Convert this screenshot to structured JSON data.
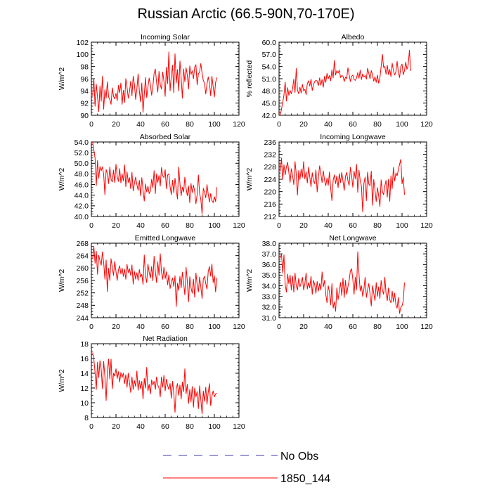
{
  "title": "Russian Arctic (66.5-90N,70-170E)",
  "legend": {
    "entries": [
      {
        "label": "No Obs",
        "color": "#3a3ab0",
        "style": "dashed"
      },
      {
        "label": "1850_144",
        "color": "#ff0000",
        "style": "solid"
      }
    ]
  },
  "chart_data": [
    {
      "type": "line",
      "title": "Incoming Solar",
      "ylabel": "W/m^2",
      "xlim": [
        0,
        120
      ],
      "xticks": [
        0,
        20,
        40,
        60,
        80,
        100,
        120
      ],
      "ylim": [
        90,
        102
      ],
      "yticks": [
        90,
        92,
        94,
        96,
        98,
        100,
        102
      ],
      "ytick_labels": [
        "90",
        "92",
        "94",
        "96",
        "98",
        "100",
        "102"
      ],
      "series": [
        {
          "name": "1850_144",
          "color": "#ff0000",
          "values": [
            93.2,
            96.0,
            91.5,
            95.1,
            93.0,
            90.6,
            94.8,
            92.3,
            96.4,
            91.0,
            94.2,
            92.8,
            95.5,
            93.0,
            92.6,
            91.8,
            94.5,
            93.1,
            92.7,
            93.6,
            92.4,
            94.9,
            93.7,
            95.3,
            91.8,
            94.1,
            92.1,
            96.0,
            94.6,
            92.8,
            93.9,
            95.6,
            93.2,
            96.4,
            95.1,
            92.6,
            94.3,
            96.8,
            94.0,
            92.2,
            95.3,
            90.5,
            93.4,
            96.2,
            92.9,
            94.7,
            96.1,
            95.0,
            93.3,
            94.7,
            96.9,
            97.6,
            95.4,
            93.8,
            97.2,
            95.0,
            94.3,
            97.1,
            95.6,
            93.1,
            97.9,
            95.2,
            100.4,
            94.0,
            96.5,
            98.2,
            93.7,
            100.1,
            95.3,
            97.5,
            94.0,
            98.9,
            96.1,
            92.8,
            97.6,
            95.5,
            97.8,
            96.6,
            94.3,
            98.1,
            96.7,
            97.3,
            96.0,
            97.9,
            98.3,
            95.0,
            96.8,
            97.1,
            98.5,
            96.9,
            95.7,
            95.3,
            93.5,
            95.1,
            96.3,
            95.2,
            93.2,
            96.4,
            94.7,
            93.0,
            95.4,
            96.2
          ]
        }
      ]
    },
    {
      "type": "line",
      "title": "Albedo",
      "ylabel": "% reflected",
      "xlim": [
        0,
        120
      ],
      "xticks": [
        0,
        20,
        40,
        60,
        80,
        100,
        120
      ],
      "ylim": [
        42,
        60
      ],
      "yticks": [
        42,
        45,
        48,
        51,
        54,
        57,
        60
      ],
      "ytick_labels": [
        "42.0",
        "45.0",
        "48.0",
        "51.0",
        "54.0",
        "57.0",
        "60.0"
      ],
      "series": [
        {
          "name": "1850_144",
          "color": "#ff0000",
          "values": [
            42.0,
            43.5,
            45.2,
            47.0,
            50.2,
            45.5,
            48.8,
            46.9,
            48.1,
            47.3,
            48.5,
            50.9,
            47.6,
            53.5,
            48.2,
            47.3,
            48.9,
            47.5,
            49.6,
            48.0,
            48.4,
            47.1,
            49.8,
            50.5,
            49.2,
            50.9,
            48.1,
            49.5,
            50.3,
            50.6,
            50.4,
            49.3,
            51.2,
            49.4,
            50.8,
            48.9,
            51.6,
            50.1,
            52.3,
            51.0,
            51.8,
            50.5,
            53.2,
            51.2,
            55.5,
            51.9,
            53.0,
            52.4,
            53.1,
            51.3,
            51.8,
            51.6,
            50.3,
            51.4,
            51.0,
            53.7,
            52.0,
            50.3,
            51.6,
            51.9,
            50.8,
            50.6,
            51.2,
            52.5,
            51.1,
            53.1,
            50.8,
            52.2,
            51.4,
            51.8,
            50.9,
            53.6,
            52.3,
            51.0,
            53.0,
            52.0,
            50.4,
            51.5,
            50.1,
            51.9,
            49.9,
            51.2,
            54.0,
            57.0,
            53.8,
            54.0,
            52.1,
            54.3,
            52.0,
            53.3,
            51.5,
            54.8,
            53.0,
            51.9,
            52.7,
            55.3,
            52.6,
            51.3,
            54.0,
            54.6,
            52.0,
            53.0,
            55.1,
            53.3,
            54.4,
            58.0,
            52.9
          ]
        }
      ]
    },
    {
      "type": "line",
      "title": "Absorbed Solar",
      "ylabel": "W/m^2",
      "xlim": [
        0,
        120
      ],
      "xticks": [
        0,
        20,
        40,
        60,
        80,
        100,
        120
      ],
      "ylim": [
        40,
        54
      ],
      "yticks": [
        40,
        42,
        44,
        46,
        48,
        50,
        52,
        54
      ],
      "ytick_labels": [
        "40.0",
        "42.0",
        "44.0",
        "46.0",
        "48.0",
        "50.0",
        "52.0",
        "54.0"
      ],
      "series": [
        {
          "name": "1850_144",
          "color": "#ff0000",
          "values": [
            54.0,
            52.5,
            51.0,
            45.8,
            50.5,
            47.2,
            49.4,
            48.6,
            49.3,
            47.9,
            44.1,
            48.8,
            48.1,
            46.2,
            49.3,
            47.0,
            46.5,
            48.7,
            46.4,
            49.8,
            47.5,
            46.6,
            49.0,
            46.3,
            48.0,
            46.7,
            49.7,
            45.6,
            48.4,
            46.4,
            47.3,
            45.2,
            48.3,
            44.8,
            46.2,
            47.4,
            46.0,
            44.9,
            46.8,
            43.9,
            47.3,
            45.0,
            42.9,
            46.1,
            44.6,
            45.7,
            44.3,
            44.8,
            47.0,
            45.4,
            48.6,
            44.3,
            48.0,
            46.4,
            47.7,
            45.7,
            49.2,
            47.6,
            47.3,
            48.8,
            45.2,
            47.8,
            48.0,
            45.6,
            44.1,
            46.8,
            44.5,
            47.2,
            45.1,
            43.3,
            49.3,
            46.2,
            43.9,
            45.5,
            44.6,
            47.4,
            45.3,
            43.9,
            45.7,
            42.6,
            46.2,
            44.5,
            45.9,
            44.7,
            42.4,
            44.1,
            47.8,
            44.3,
            43.2,
            40.5,
            45.3,
            44.6,
            43.5,
            46.0,
            44.2,
            42.7,
            44.3,
            43.0,
            42.6,
            43.7,
            42.8,
            45.5
          ]
        }
      ]
    },
    {
      "type": "line",
      "title": "Incoming Longwave",
      "ylabel": "W/m^2",
      "xlim": [
        0,
        120
      ],
      "xticks": [
        0,
        20,
        40,
        60,
        80,
        100,
        120
      ],
      "ylim": [
        212,
        236
      ],
      "yticks": [
        212,
        216,
        220,
        224,
        228,
        232,
        236
      ],
      "ytick_labels": [
        "212",
        "216",
        "220",
        "224",
        "228",
        "232",
        "236"
      ],
      "series": [
        {
          "name": "1850_144",
          "color": "#ff0000",
          "values": [
            226.5,
            230.8,
            224.0,
            228.6,
            225.4,
            227.9,
            229.5,
            226.1,
            223.0,
            227.4,
            225.2,
            222.3,
            229.7,
            225.6,
            218.9,
            226.8,
            223.9,
            227.3,
            224.6,
            229.7,
            224.1,
            226.4,
            222.8,
            227.9,
            224.7,
            221.6,
            226.1,
            223.4,
            222.6,
            227.0,
            219.9,
            224.5,
            228.3,
            225.8,
            222.9,
            226.7,
            223.7,
            221.9,
            224.4,
            222.0,
            226.3,
            221.0,
            217.1,
            223.7,
            225.4,
            222.6,
            225.1,
            221.3,
            225.8,
            222.9,
            226.2,
            223.4,
            220.4,
            224.9,
            226.2,
            223.5,
            222.0,
            227.8,
            225.2,
            221.4,
            226.6,
            224.1,
            228.8,
            219.8,
            226.9,
            223.5,
            221.8,
            213.5,
            222.7,
            224.7,
            217.1,
            226.3,
            222.4,
            221.9,
            226.6,
            215.6,
            223.9,
            220.5,
            216.8,
            221.3,
            218.7,
            215.2,
            223.8,
            220.1,
            219.0,
            221.8,
            223.6,
            218.2,
            224.0,
            216.9,
            225.1,
            221.0,
            227.8,
            223.4,
            226.0,
            225.1,
            227.0,
            228.8,
            230.4,
            222.5,
            224.7,
            219.0
          ]
        }
      ]
    },
    {
      "type": "line",
      "title": "Emitted Longwave",
      "ylabel": "W/m^2",
      "xlim": [
        0,
        120
      ],
      "xticks": [
        0,
        20,
        40,
        60,
        80,
        100,
        120
      ],
      "ylim": [
        244,
        268
      ],
      "yticks": [
        244,
        248,
        252,
        256,
        260,
        264,
        268
      ],
      "ytick_labels": [
        "244",
        "248",
        "252",
        "256",
        "260",
        "264",
        "268"
      ],
      "series": [
        {
          "name": "1850_144",
          "color": "#ff0000",
          "values": [
            263.0,
            267.0,
            261.5,
            265.4,
            258.0,
            264.1,
            262.3,
            260.9,
            265.2,
            261.8,
            256.4,
            262.6,
            252.4,
            259.9,
            256.0,
            263.0,
            260.2,
            257.6,
            262.1,
            258.9,
            256.0,
            259.4,
            260.7,
            258.1,
            260.0,
            257.3,
            259.6,
            256.4,
            261.2,
            258.5,
            259.8,
            257.6,
            261.0,
            254.8,
            258.9,
            256.4,
            258.5,
            256.0,
            259.5,
            257.1,
            258.0,
            254.7,
            264.2,
            257.4,
            255.3,
            261.3,
            258.6,
            256.8,
            260.5,
            255.9,
            263.8,
            259.0,
            255.3,
            262.0,
            257.6,
            264.6,
            258.7,
            256.4,
            260.3,
            256.6,
            258.8,
            254.6,
            257.8,
            253.4,
            255.5,
            256.8,
            254.1,
            257.5,
            247.6,
            255.1,
            252.8,
            257.3,
            253.6,
            258.7,
            255.2,
            251.3,
            260.2,
            255.8,
            249.1,
            257.2,
            253.7,
            251.9,
            256.4,
            250.6,
            258.4,
            254.6,
            252.3,
            257.1,
            253.9,
            250.2,
            256.4,
            257.3,
            255.0,
            253.2,
            258.9,
            260.5,
            257.4,
            261.3,
            255.3,
            257.5,
            252.3,
            256.8
          ]
        }
      ]
    },
    {
      "type": "line",
      "title": "Net Longwave",
      "ylabel": "W/m^2",
      "xlim": [
        0,
        120
      ],
      "xticks": [
        0,
        20,
        40,
        60,
        80,
        100,
        120
      ],
      "ylim": [
        31,
        38
      ],
      "yticks": [
        31,
        32,
        33,
        34,
        35,
        36,
        37,
        38
      ],
      "ytick_labels": [
        "31.0",
        "32.0",
        "33.0",
        "34.0",
        "35.0",
        "36.0",
        "37.0",
        "38.0"
      ],
      "series": [
        {
          "name": "1850_144",
          "color": "#ff0000",
          "values": [
            36.6,
            37.0,
            35.2,
            36.9,
            34.1,
            33.4,
            35.1,
            34.2,
            35.0,
            33.6,
            34.9,
            33.4,
            35.2,
            34.0,
            33.6,
            34.7,
            33.9,
            34.3,
            34.8,
            33.6,
            34.2,
            35.2,
            33.7,
            34.3,
            33.8,
            34.9,
            33.2,
            34.5,
            34.1,
            33.3,
            34.4,
            33.5,
            34.2,
            33.6,
            35.3,
            33.9,
            34.5,
            33.2,
            32.4,
            34.0,
            33.4,
            32.2,
            34.2,
            31.9,
            32.5,
            31.6,
            33.8,
            32.7,
            33.5,
            34.3,
            33.1,
            34.7,
            32.9,
            34.5,
            33.2,
            33.9,
            34.5,
            35.4,
            35.6,
            34.6,
            33.2,
            34.8,
            33.6,
            37.2,
            35.1,
            33.5,
            34.0,
            33.0,
            33.7,
            34.8,
            32.9,
            33.6,
            34.2,
            33.2,
            32.1,
            34.0,
            33.3,
            32.6,
            34.3,
            33.0,
            33.9,
            32.8,
            34.5,
            33.6,
            33.2,
            34.8,
            33.3,
            32.6,
            33.8,
            32.7,
            32.4,
            33.5,
            32.5,
            33.3,
            32.2,
            31.9,
            32.9,
            31.4,
            32.0,
            32.1,
            32.6,
            34.3
          ]
        }
      ]
    },
    {
      "type": "line",
      "title": "Net Radiation",
      "ylabel": "W/m^2",
      "xlim": [
        0,
        120
      ],
      "xticks": [
        0,
        20,
        40,
        60,
        80,
        100,
        120
      ],
      "ylim": [
        8,
        18
      ],
      "yticks": [
        8,
        10,
        12,
        14,
        16,
        18
      ],
      "ytick_labels": [
        "8",
        "10",
        "12",
        "14",
        "16",
        "18"
      ],
      "series": [
        {
          "name": "1850_144",
          "color": "#ff0000",
          "values": [
            16.8,
            15.9,
            14.1,
            11.8,
            15.5,
            13.4,
            15.7,
            14.5,
            11.9,
            15.6,
            13.5,
            10.3,
            14.2,
            15.9,
            13.2,
            15.9,
            11.9,
            14.0,
            13.6,
            14.6,
            13.3,
            14.2,
            12.8,
            14.1,
            13.4,
            14.0,
            12.6,
            13.8,
            12.1,
            14.0,
            12.7,
            11.4,
            13.5,
            11.8,
            13.0,
            12.2,
            14.3,
            11.7,
            13.0,
            11.9,
            12.9,
            10.5,
            13.3,
            12.0,
            14.8,
            11.6,
            12.5,
            11.2,
            13.1,
            12.4,
            12.9,
            11.8,
            13.5,
            12.4,
            12.0,
            10.8,
            13.5,
            12.1,
            13.7,
            11.6,
            13.2,
            12.3,
            11.8,
            12.6,
            10.6,
            12.9,
            11.3,
            8.7,
            11.9,
            12.6,
            11.0,
            12.4,
            10.5,
            12.8,
            11.5,
            14.6,
            11.2,
            12.5,
            9.9,
            11.8,
            10.1,
            12.2,
            9.4,
            12.0,
            10.8,
            11.5,
            9.2,
            12.3,
            10.4,
            8.5,
            11.6,
            10.2,
            12.1,
            9.8,
            11.4,
            12.6,
            9.6,
            10.9,
            11.6,
            10.8,
            11.2,
            11.3
          ]
        }
      ]
    }
  ]
}
